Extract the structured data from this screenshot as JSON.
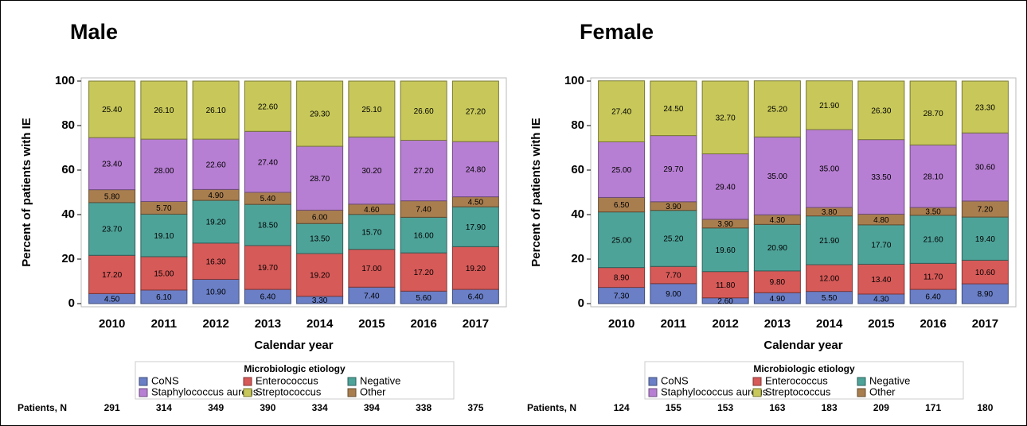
{
  "chart_data": [
    {
      "type": "bar",
      "stacked": true,
      "title": "Male",
      "x_label": "Calendar year",
      "y_label": "Percent of patients with IE",
      "legend_title": "Microbiologic etiology",
      "patients_label": "Patients, N",
      "categories": [
        "2010",
        "2011",
        "2012",
        "2013",
        "2014",
        "2015",
        "2016",
        "2017"
      ],
      "patients": [
        291,
        314,
        349,
        390,
        334,
        394,
        338,
        375
      ],
      "ylim": [
        0,
        100
      ],
      "yticks": [
        0,
        20,
        40,
        60,
        80,
        100
      ],
      "series": [
        {
          "name": "CoNS",
          "color": "#6a7fc6",
          "values": [
            4.5,
            6.1,
            10.9,
            6.4,
            3.3,
            7.4,
            5.6,
            6.4
          ],
          "value_labels": [
            "4.50",
            "6.10",
            "10.90",
            "6.40",
            "3.30",
            "7.40",
            "5.60",
            "6.40"
          ]
        },
        {
          "name": "Enterococcus",
          "color": "#d65a58",
          "values": [
            17.2,
            15.0,
            16.3,
            19.7,
            19.2,
            17.0,
            17.2,
            19.2
          ],
          "value_labels": [
            "17.20",
            "15.00",
            "16.30",
            "19.70",
            "19.20",
            "17.00",
            "17.20",
            "19.20"
          ]
        },
        {
          "name": "Negative",
          "color": "#4ea399",
          "values": [
            23.7,
            19.1,
            19.2,
            18.5,
            13.5,
            15.7,
            16.0,
            17.9
          ],
          "value_labels": [
            "23.70",
            "19.10",
            "19.20",
            "18.50",
            "13.50",
            "15.70",
            "16.00",
            "17.90"
          ]
        },
        {
          "name": "Other",
          "color": "#a97e4f",
          "values": [
            5.8,
            5.7,
            4.9,
            5.4,
            6.0,
            4.6,
            7.4,
            4.5
          ],
          "value_labels": [
            "5.80",
            "5.70",
            "4.90",
            "5.40",
            "6.00",
            "4.60",
            "7.40",
            "4.50"
          ]
        },
        {
          "name": "Staphylococcus aureus",
          "color": "#b77fd3",
          "values": [
            23.4,
            28.0,
            22.6,
            27.4,
            28.7,
            30.2,
            27.2,
            24.8
          ],
          "value_labels": [
            "23.40",
            "28.00",
            "22.60",
            "27.40",
            "28.70",
            "30.20",
            "27.20",
            "24.80"
          ]
        },
        {
          "name": "Streptococcus",
          "color": "#c8c85a",
          "values": [
            25.4,
            26.1,
            26.1,
            22.6,
            29.3,
            25.1,
            26.6,
            27.2
          ],
          "value_labels": [
            "25.40",
            "26.10",
            "26.10",
            "22.60",
            "29.30",
            "25.10",
            "26.60",
            "27.20"
          ]
        }
      ]
    },
    {
      "type": "bar",
      "stacked": true,
      "title": "Female",
      "x_label": "Calendar year",
      "y_label": "Percent of patients with IE",
      "legend_title": "Microbiologic etiology",
      "patients_label": "Patients, N",
      "categories": [
        "2010",
        "2011",
        "2012",
        "2013",
        "2014",
        "2015",
        "2016",
        "2017"
      ],
      "patients": [
        124,
        155,
        153,
        163,
        183,
        209,
        171,
        180
      ],
      "ylim": [
        0,
        100
      ],
      "yticks": [
        0,
        20,
        40,
        60,
        80,
        100
      ],
      "series": [
        {
          "name": "CoNS",
          "color": "#6a7fc6",
          "values": [
            7.3,
            9.0,
            2.6,
            4.9,
            5.5,
            4.3,
            6.4,
            8.9
          ],
          "value_labels": [
            "7.30",
            "9.00",
            "2.60",
            "4.90",
            "5.50",
            "4.30",
            "6.40",
            "8.90"
          ]
        },
        {
          "name": "Enterococcus",
          "color": "#d65a58",
          "values": [
            8.9,
            7.7,
            11.8,
            9.8,
            12.0,
            13.4,
            11.7,
            10.6
          ],
          "value_labels": [
            "8.90",
            "7.70",
            "11.80",
            "9.80",
            "12.00",
            "13.40",
            "11.70",
            "10.60"
          ]
        },
        {
          "name": "Negative",
          "color": "#4ea399",
          "values": [
            25.0,
            25.2,
            19.6,
            20.9,
            21.9,
            17.7,
            21.6,
            19.4
          ],
          "value_labels": [
            "25.00",
            "25.20",
            "19.60",
            "20.90",
            "21.90",
            "17.70",
            "21.60",
            "19.40"
          ]
        },
        {
          "name": "Other",
          "color": "#a97e4f",
          "values": [
            6.5,
            3.9,
            3.9,
            4.3,
            3.8,
            4.8,
            3.5,
            7.2
          ],
          "value_labels": [
            "6.50",
            "3.90",
            "3.90",
            "4.30",
            "3.80",
            "4.80",
            "3.50",
            "7.20"
          ]
        },
        {
          "name": "Staphylococcus aureus",
          "color": "#b77fd3",
          "values": [
            25.0,
            29.7,
            29.4,
            35.0,
            35.0,
            33.5,
            28.1,
            30.6
          ],
          "value_labels": [
            "25.00",
            "29.70",
            "29.40",
            "35.00",
            "35.00",
            "33.50",
            "28.10",
            "30.60"
          ]
        },
        {
          "name": "Streptococcus",
          "color": "#c8c85a",
          "values": [
            27.4,
            24.5,
            32.7,
            25.2,
            21.9,
            26.3,
            28.7,
            23.3
          ],
          "value_labels": [
            "27.40",
            "24.50",
            "32.70",
            "25.20",
            "21.90",
            "26.30",
            "28.70",
            "23.30"
          ]
        }
      ]
    }
  ]
}
